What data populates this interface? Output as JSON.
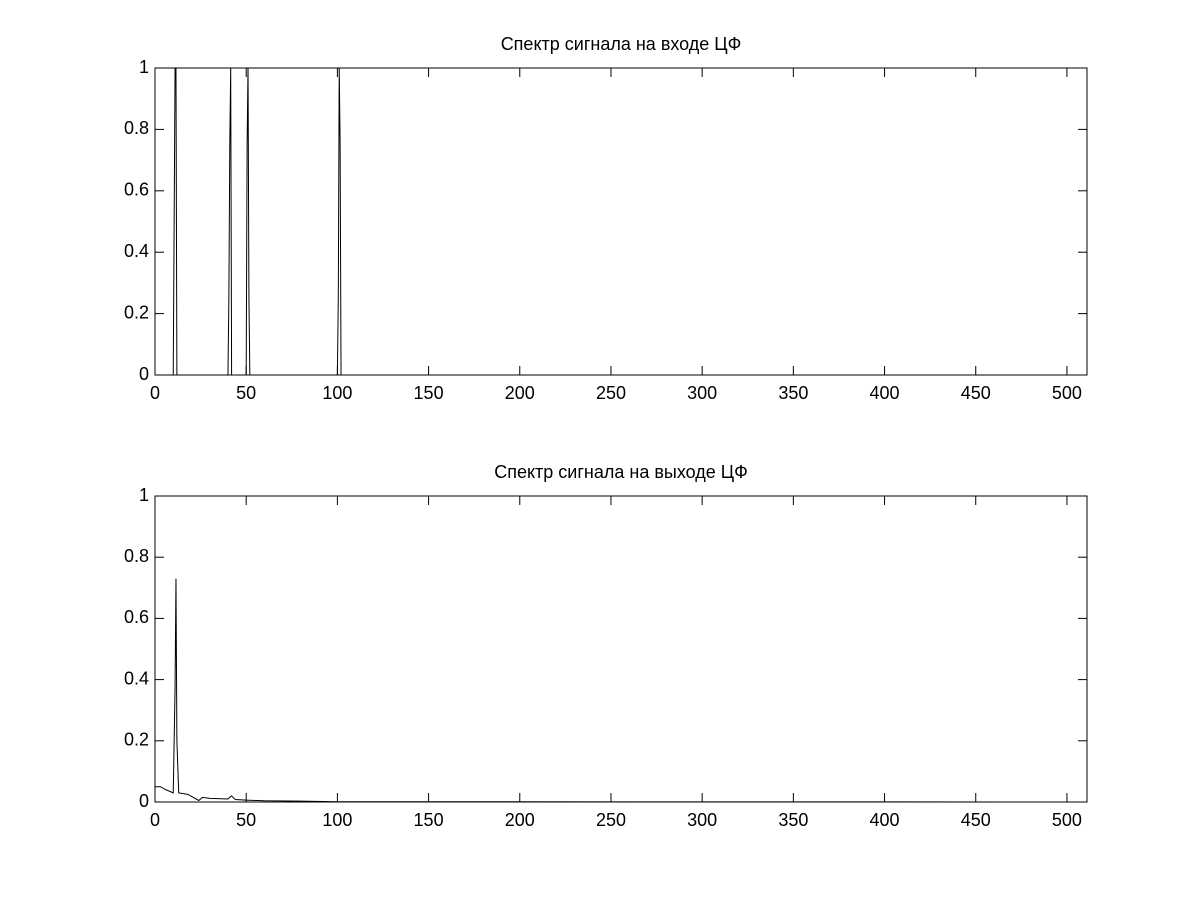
{
  "chart_data": [
    {
      "type": "line",
      "title": "Спектр сигнала на входе ЦФ",
      "color": "#000000",
      "grid": false,
      "x": [
        0,
        10,
        10.5,
        11,
        11.5,
        12,
        40,
        40.5,
        41,
        41.5,
        42,
        50,
        50.5,
        51,
        51.5,
        52,
        100,
        100.5,
        101,
        101.5,
        102,
        511
      ],
      "values": [
        0,
        0,
        0.5,
        1,
        1,
        0,
        0,
        0.25,
        0.75,
        1,
        0,
        0,
        0.75,
        1,
        0.25,
        0,
        0,
        0.25,
        1,
        0.75,
        0,
        0
      ],
      "xlim": [
        0,
        511
      ],
      "xticks": [
        0,
        50,
        100,
        150,
        200,
        250,
        300,
        350,
        400,
        450,
        500
      ],
      "ylim": [
        0,
        1
      ],
      "yticks": [
        0,
        0.2,
        0.4,
        0.6,
        0.8,
        1
      ]
    },
    {
      "type": "line",
      "title": "Спектр сигнала на выходе ЦФ",
      "color": "#000000",
      "grid": false,
      "x": [
        0,
        3,
        6,
        10,
        11,
        11.5,
        12,
        13,
        18,
        24,
        26,
        30,
        40,
        42,
        44,
        50,
        60,
        80,
        100,
        511
      ],
      "values": [
        0.05,
        0.05,
        0.04,
        0.03,
        0.37,
        0.73,
        0.2,
        0.03,
        0.025,
        0.005,
        0.015,
        0.012,
        0.01,
        0.02,
        0.008,
        0.006,
        0.004,
        0.003,
        0.001,
        0
      ],
      "xlim": [
        0,
        511
      ],
      "xticks": [
        0,
        50,
        100,
        150,
        200,
        250,
        300,
        350,
        400,
        450,
        500
      ],
      "ylim": [
        0,
        1
      ],
      "yticks": [
        0,
        0.2,
        0.4,
        0.6,
        0.8,
        1
      ]
    }
  ]
}
